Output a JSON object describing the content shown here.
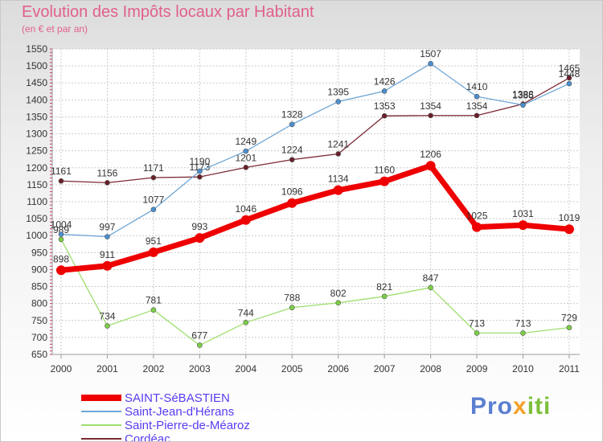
{
  "chart_data": {
    "type": "line",
    "title": "Evolution des Impôts locaux par Habitant",
    "subtitle": "(en € et par an)",
    "xlabel": "",
    "ylabel": "",
    "ylim": [
      650,
      1550
    ],
    "yticks": [
      650,
      700,
      750,
      800,
      850,
      900,
      950,
      1000,
      1050,
      1100,
      1150,
      1200,
      1250,
      1300,
      1350,
      1400,
      1450,
      1500,
      1550
    ],
    "categories": [
      "2000",
      "2001",
      "2002",
      "2003",
      "2004",
      "2005",
      "2006",
      "2007",
      "2008",
      "2009",
      "2010",
      "2011"
    ],
    "grid": true,
    "legend_position": "bottom-left",
    "series": [
      {
        "name": "Saint-Pierre-de-Méaroz",
        "color": "#9fdf6f",
        "marker": "#7ccf45",
        "values": [
          989,
          734,
          781,
          677,
          744,
          788,
          802,
          821,
          847,
          713,
          713,
          729
        ]
      },
      {
        "name": "Cordéac",
        "color": "#7a2a34",
        "marker": "#6a1f2a",
        "values": [
          1161,
          1156,
          1171,
          1173,
          1201,
          1224,
          1241,
          1353,
          1354,
          1354,
          1388,
          1465
        ]
      },
      {
        "name": "Saint-Jean-d'Hérans",
        "color": "#6fa6d6",
        "marker": "#4a8fd0",
        "values": [
          1004,
          997,
          1077,
          1190,
          1249,
          1328,
          1395,
          1426,
          1507,
          1410,
          1385,
          1448
        ]
      },
      {
        "name": "SAINT-SéBASTIEN",
        "color": "#ee0000",
        "marker": "#ee0000",
        "values": [
          898,
          911,
          951,
          993,
          1046,
          1096,
          1134,
          1160,
          1206,
          1025,
          1031,
          1019
        ]
      }
    ]
  },
  "legend": [
    {
      "label": "SAINT-SéBASTIEN",
      "color": "#ee0000"
    },
    {
      "label": "Saint-Jean-d'Hérans",
      "color": "#6fa6d6"
    },
    {
      "label": "Saint-Pierre-de-Méaroz",
      "color": "#9fdf6f"
    },
    {
      "label": "Cordéac",
      "color": "#7a2a34"
    }
  ],
  "brand": {
    "part1": "Pro",
    "part2": "x",
    "part3": "iti"
  }
}
